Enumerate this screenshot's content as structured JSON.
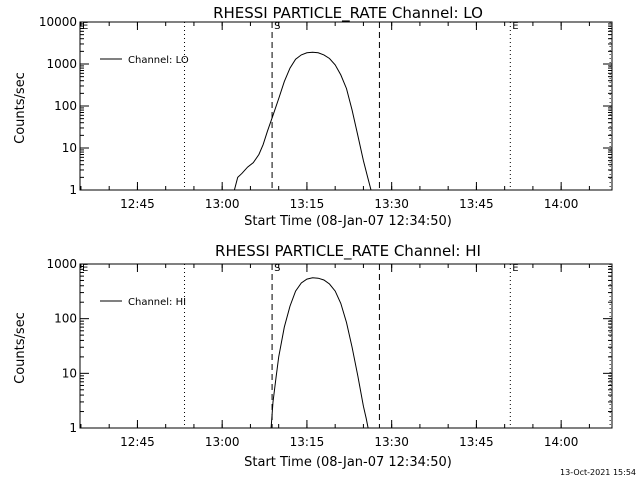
{
  "chart_data": [
    {
      "type": "line",
      "title": "RHESSI PARTICLE_RATE Channel: LO",
      "xlabel": "Start Time (08-Jan-07 12:34:50)",
      "ylabel": "Counts/sec",
      "yscale": "log",
      "ylim": [
        1,
        10000
      ],
      "xlim": [
        "12:34:50",
        "14:09:00"
      ],
      "x_ticks": [
        "12:45",
        "13:00",
        "13:15",
        "13:30",
        "13:45",
        "14:00"
      ],
      "y_ticks": [
        "1",
        "10",
        "100",
        "1000",
        "10000"
      ],
      "legend_position": "top-left",
      "series": [
        {
          "name": "Channel: LO",
          "x": [
            "13:02:10",
            "13:02:45",
            "13:03:30",
            "13:04:30",
            "13:05:30",
            "13:06:30",
            "13:07:15",
            "13:08:00",
            "13:09:00",
            "13:10:00",
            "13:11:00",
            "13:12:00",
            "13:13:00",
            "13:14:00",
            "13:15:00",
            "13:16:00",
            "13:17:00",
            "13:18:00",
            "13:19:00",
            "13:20:00",
            "13:21:00",
            "13:22:00",
            "13:23:00",
            "13:24:00",
            "13:25:00",
            "13:25:45",
            "13:26:20"
          ],
          "y": [
            1,
            2,
            2.5,
            3.5,
            4.5,
            7,
            12,
            25,
            60,
            150,
            380,
            800,
            1300,
            1650,
            1850,
            1900,
            1850,
            1650,
            1350,
            950,
            550,
            260,
            80,
            20,
            5,
            2,
            1
          ]
        }
      ],
      "markers": [
        {
          "label": "E",
          "x": "12:34:50",
          "style": "dotted"
        },
        {
          "label": "",
          "x": "12:53:20",
          "style": "dotted"
        },
        {
          "label": "S",
          "x": "13:08:50",
          "style": "dashed"
        },
        {
          "label": "",
          "x": "13:27:50",
          "style": "dashed"
        },
        {
          "label": "E",
          "x": "13:51:00",
          "style": "dotted"
        },
        {
          "label": "",
          "x": "14:08:40",
          "style": "dotted"
        }
      ]
    },
    {
      "type": "line",
      "title": "RHESSI PARTICLE_RATE Channel: HI",
      "xlabel": "Start Time (08-Jan-07 12:34:50)",
      "ylabel": "Counts/sec",
      "yscale": "log",
      "ylim": [
        1,
        1000
      ],
      "xlim": [
        "12:34:50",
        "14:09:00"
      ],
      "x_ticks": [
        "12:45",
        "13:00",
        "13:15",
        "13:30",
        "13:45",
        "14:00"
      ],
      "y_ticks": [
        "1",
        "10",
        "100",
        "1000"
      ],
      "legend_position": "top-left",
      "series": [
        {
          "name": "Channel: HI",
          "x": [
            "13:08:40",
            "13:09:00",
            "13:09:30",
            "13:10:00",
            "13:11:00",
            "13:12:00",
            "13:13:00",
            "13:14:00",
            "13:15:00",
            "13:16:00",
            "13:17:00",
            "13:18:00",
            "13:19:00",
            "13:20:00",
            "13:21:00",
            "13:22:00",
            "13:23:00",
            "13:24:00",
            "13:25:00",
            "13:25:30",
            "13:25:50"
          ],
          "y": [
            1,
            3,
            8,
            20,
            70,
            170,
            320,
            450,
            530,
            560,
            550,
            510,
            430,
            320,
            190,
            85,
            30,
            9,
            2.5,
            1.5,
            1
          ]
        }
      ],
      "markers": [
        {
          "label": "E",
          "x": "12:34:50",
          "style": "dotted"
        },
        {
          "label": "",
          "x": "12:53:20",
          "style": "dotted"
        },
        {
          "label": "S",
          "x": "13:08:50",
          "style": "dashed"
        },
        {
          "label": "",
          "x": "13:27:50",
          "style": "dashed"
        },
        {
          "label": "E",
          "x": "13:51:00",
          "style": "dotted"
        },
        {
          "label": "",
          "x": "14:08:40",
          "style": "dotted"
        }
      ]
    }
  ],
  "footer": {
    "timestamp": "13-Oct-2021 15:54"
  }
}
